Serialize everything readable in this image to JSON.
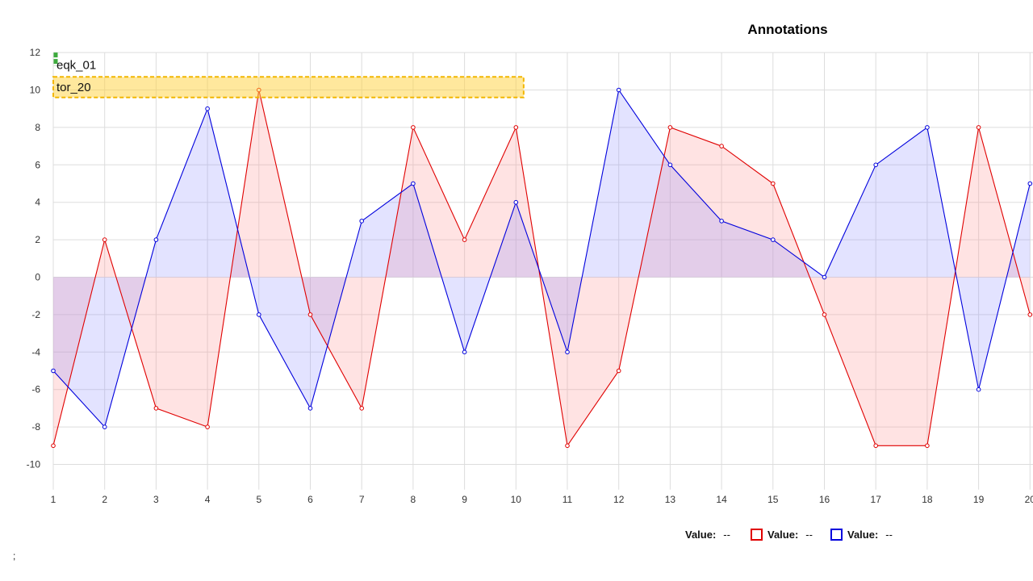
{
  "chart_data": {
    "type": "area",
    "title": "Annotations",
    "xlabel": "",
    "ylabel": "",
    "x": [
      1,
      2,
      3,
      4,
      5,
      6,
      7,
      8,
      9,
      10,
      11,
      12,
      13,
      14,
      15,
      16,
      17,
      18,
      19,
      20
    ],
    "xlim": [
      1,
      20
    ],
    "ylim": [
      -11,
      12
    ],
    "y_ticks": [
      12,
      10,
      8,
      6,
      4,
      2,
      0,
      -2,
      -4,
      -6,
      -8,
      -10
    ],
    "grid": true,
    "series": [
      {
        "color": "#e00000",
        "fill": "rgba(255,150,150,0.27)",
        "values": [
          -9,
          2,
          -7,
          -8,
          10,
          -2,
          -7,
          8,
          2,
          8,
          -9,
          -5,
          8,
          7,
          5,
          -2,
          -9,
          -9,
          8,
          -2
        ]
      },
      {
        "color": "#0000dd",
        "fill": "rgba(140,140,255,0.24)",
        "values": [
          -5,
          -8,
          2,
          9,
          -2,
          -7,
          3,
          5,
          -4,
          4,
          -4,
          10,
          6,
          3,
          2,
          0,
          6,
          8,
          -6,
          5
        ]
      }
    ],
    "annotations": [
      {
        "label": "eqk_01",
        "type": "line",
        "color": "#3daa3d",
        "y_from": 11.3,
        "y_to": 12
      },
      {
        "label": "tor_20",
        "type": "box",
        "fill": "rgba(255,210,60,0.5)",
        "border": "#f2b600",
        "x_from": 1,
        "x_to": 10.15,
        "y_from": 9.6,
        "y_to": 10.7
      }
    ]
  },
  "legend": {
    "items": [
      {
        "key": "Value:",
        "value": "--",
        "color": ""
      },
      {
        "key": "Value:",
        "value": "--",
        "color": "#e00000"
      },
      {
        "key": "Value:",
        "value": "--",
        "color": "#0000dd"
      }
    ]
  },
  "footnote": ";"
}
